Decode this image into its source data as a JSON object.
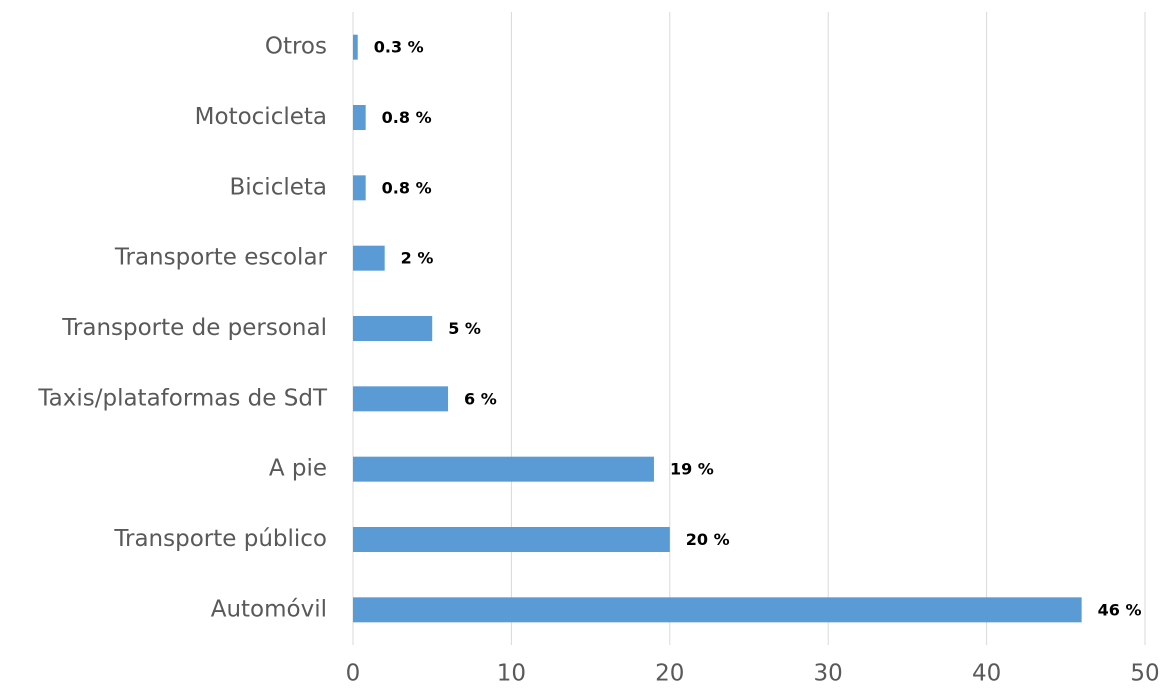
{
  "chart_data": {
    "type": "bar",
    "orientation": "horizontal",
    "categories": [
      "Otros",
      "Motocicleta",
      "Bicicleta",
      "Transporte escolar",
      "Transporte de personal",
      "Taxis/plataformas de SdT",
      "A pie",
      "Transporte público",
      "Automóvil"
    ],
    "values": [
      0.3,
      0.8,
      0.8,
      2,
      5,
      6,
      19,
      20,
      46
    ],
    "value_labels": [
      "0.3 %",
      "0.8 %",
      "0.8 %",
      "2 %",
      "5 %",
      "6 %",
      "19 %",
      "20 %",
      "46 %"
    ],
    "color": "#5b9bd5",
    "xlim": [
      0,
      50
    ],
    "xticks": [
      0,
      10,
      20,
      30,
      40,
      50
    ],
    "grid": true
  }
}
